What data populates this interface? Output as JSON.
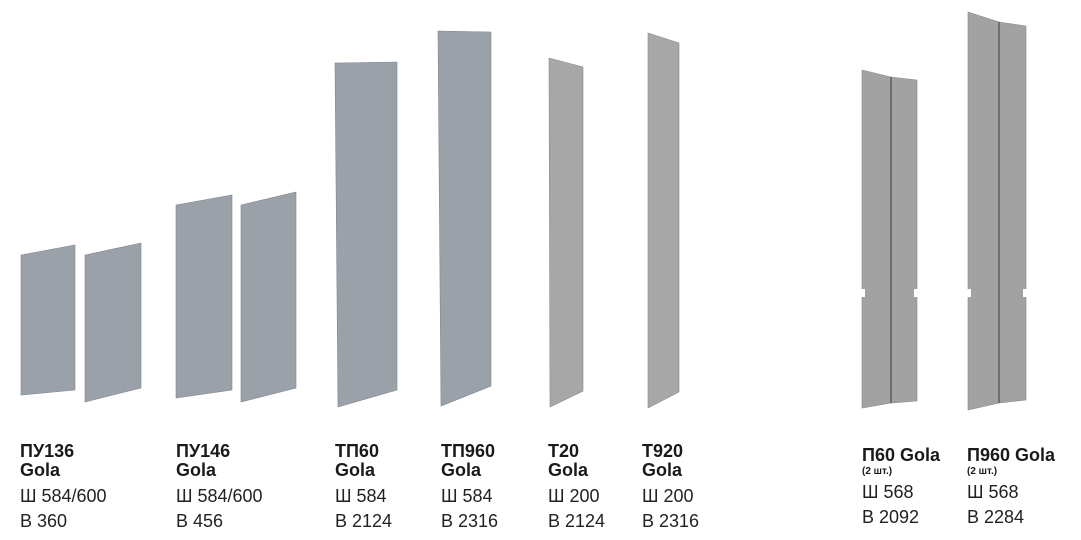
{
  "colors": {
    "panel_blue": "#9aa1a9",
    "panel_blue_edge": "#7f868e",
    "panel_grey": "#a7a7a7",
    "panel_grey_edge": "#8a8a8a",
    "panel_door": "#a2a2a2",
    "panel_seam": "#6e6e6e",
    "text": "#1a1a1a"
  },
  "products": [
    {
      "name_line1": "ПУ136",
      "name_line2": "Gola",
      "qty": "",
      "width": "Ш 584/600",
      "height": "В 360"
    },
    {
      "name_line1": "ПУ146",
      "name_line2": "Gola",
      "qty": "",
      "width": "Ш 584/600",
      "height": "В 456"
    },
    {
      "name_line1": "ТП60",
      "name_line2": "Gola",
      "qty": "",
      "width": "Ш 584",
      "height": "В 2124"
    },
    {
      "name_line1": "ТП960",
      "name_line2": "Gola",
      "qty": "",
      "width": "Ш 584",
      "height": "В 2316"
    },
    {
      "name_line1": "Т20",
      "name_line2": "Gola",
      "qty": "",
      "width": "Ш 200",
      "height": "В 2124"
    },
    {
      "name_line1": "Т920",
      "name_line2": "Gola",
      "qty": "",
      "width": "Ш 200",
      "height": "В 2316"
    },
    {
      "name_line1": "П60 Gola",
      "name_line2": "",
      "qty": "(2 шт.)",
      "width": "Ш 568",
      "height": "В 2092"
    },
    {
      "name_line1": "П960 Gola",
      "name_line2": "",
      "qty": "(2 шт.)",
      "width": "Ш 568",
      "height": "В 2284"
    }
  ]
}
